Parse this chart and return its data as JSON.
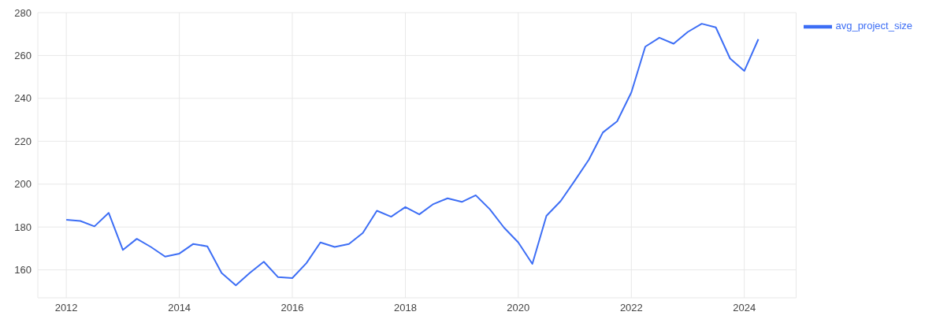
{
  "chart_data": {
    "type": "line",
    "x": [
      "2012-01",
      "2012-04",
      "2012-07",
      "2012-10",
      "2013-01",
      "2013-04",
      "2013-07",
      "2013-10",
      "2014-01",
      "2014-04",
      "2014-07",
      "2014-10",
      "2015-01",
      "2015-04",
      "2015-07",
      "2015-10",
      "2016-01",
      "2016-04",
      "2016-07",
      "2016-10",
      "2017-01",
      "2017-04",
      "2017-07",
      "2017-10",
      "2018-01",
      "2018-04",
      "2018-07",
      "2018-10",
      "2019-01",
      "2019-04",
      "2019-07",
      "2019-10",
      "2020-01",
      "2020-04",
      "2020-07",
      "2020-10",
      "2021-01",
      "2021-04",
      "2021-07",
      "2021-10",
      "2022-01",
      "2022-04",
      "2022-07",
      "2022-10",
      "2023-01",
      "2023-04",
      "2023-07",
      "2023-10",
      "2024-01",
      "2024-04"
    ],
    "series": [
      {
        "name": "avg_project_size",
        "color": "#3d6ef5",
        "values": [
          183.4,
          182.8,
          180.3,
          186.6,
          169.3,
          174.5,
          170.7,
          166.2,
          167.6,
          172.1,
          171,
          158.6,
          152.8,
          158.6,
          163.8,
          156.6,
          156.2,
          163.1,
          172.8,
          170.7,
          172.1,
          177.2,
          187.6,
          184.8,
          189.3,
          185.9,
          190.7,
          193.4,
          191.7,
          194.8,
          188.3,
          179.7,
          172.8,
          162.8,
          185.2,
          192.1,
          201.7,
          211.4,
          224.1,
          229.3,
          242.8,
          264.1,
          268.3,
          265.5,
          271,
          274.8,
          273.1,
          258.6,
          252.8,
          267.6
        ]
      }
    ],
    "xlim": [
      "2011-07",
      "2024-12"
    ],
    "xticks": [
      "2012",
      "2014",
      "2016",
      "2018",
      "2020",
      "2022",
      "2024"
    ],
    "ylim": [
      147,
      280
    ],
    "yticks": [
      160,
      180,
      200,
      220,
      240,
      260,
      280
    ],
    "grid": true,
    "legend": "top right",
    "marker": "none",
    "line_style": "solid"
  }
}
